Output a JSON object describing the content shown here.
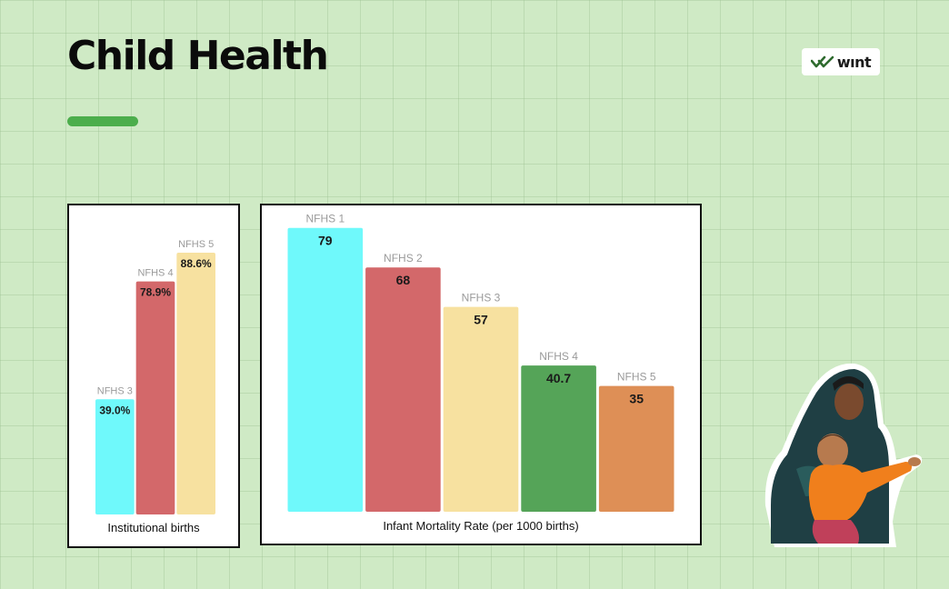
{
  "page": {
    "title": "Child Health",
    "accent_color": "#4cae4c",
    "background_color": "#cfeac5"
  },
  "logo": {
    "text": "wınt",
    "icon": "double-check-logo-icon"
  },
  "photo": {
    "subject": "mother-and-child-cutout",
    "icon": "person-photo-icon"
  },
  "chart_data": [
    {
      "type": "bar",
      "title": "Institutional births",
      "categories": [
        "NFHS 3",
        "NFHS 4",
        "NFHS 5"
      ],
      "values": [
        39.0,
        78.9,
        88.6
      ],
      "value_labels": [
        "39.0%",
        "78.9%",
        "88.6%"
      ],
      "colors": [
        "#6ff9fb",
        "#d3686a",
        "#f7e1a0"
      ],
      "ylim": [
        0,
        100
      ],
      "grid": false
    },
    {
      "type": "bar",
      "title": "Infant Mortality Rate (per 1000 births)",
      "categories": [
        "NFHS 1",
        "NFHS 2",
        "NFHS 3",
        "NFHS 4",
        "NFHS 5"
      ],
      "values": [
        79,
        68,
        57,
        40.7,
        35
      ],
      "value_labels": [
        "79",
        "68",
        "57",
        "40.7",
        "35"
      ],
      "colors": [
        "#6ff9fb",
        "#d3686a",
        "#f7e1a0",
        "#55a458",
        "#de8f56"
      ],
      "ylim": [
        0,
        85
      ],
      "grid": false
    }
  ]
}
